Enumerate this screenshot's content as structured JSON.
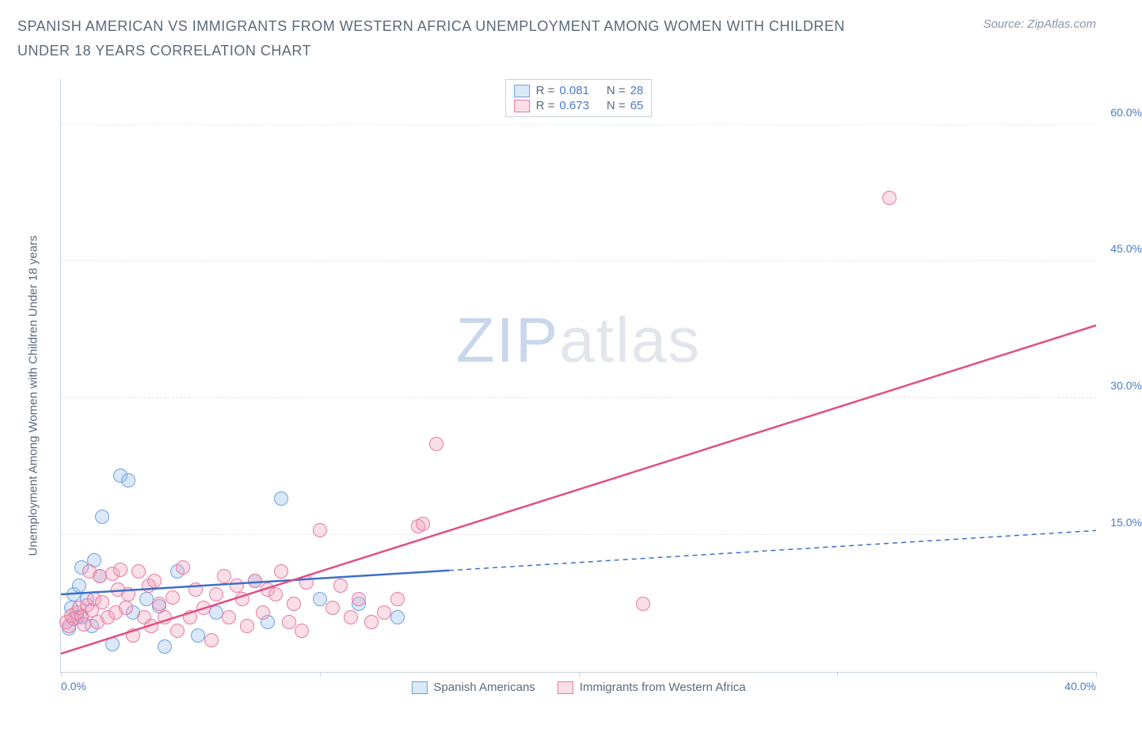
{
  "title": "SPANISH AMERICAN VS IMMIGRANTS FROM WESTERN AFRICA UNEMPLOYMENT AMONG WOMEN WITH CHILDREN UNDER 18 YEARS CORRELATION CHART",
  "source": "Source: ZipAtlas.com",
  "ylabel": "Unemployment Among Women with Children Under 18 years",
  "watermark_zip": "ZIP",
  "watermark_atlas": "atlas",
  "chart": {
    "type": "scatter",
    "xlim": [
      0,
      40
    ],
    "ylim": [
      0,
      65
    ],
    "xticks": [
      0,
      10,
      20,
      30,
      40
    ],
    "xtick_labels": [
      "0.0%",
      "",
      "",
      "",
      "40.0%"
    ],
    "yticks": [
      15,
      30,
      45,
      60
    ],
    "ytick_labels": [
      "15.0%",
      "30.0%",
      "45.0%",
      "60.0%"
    ],
    "grid_color": "#e3e8ef",
    "axis_color": "#c9d2dc",
    "background_color": "#ffffff",
    "tick_label_color": "#4a7ac7",
    "series": [
      {
        "name": "Spanish Americans",
        "color_stroke": "#6fa0e0",
        "color_fill": "rgba(150,190,235,0.35)",
        "trend_color": "#3e6fc9",
        "trend_solid_end_x": 15,
        "trend": {
          "x1": 0,
          "y1": 8.5,
          "x2": 40,
          "y2": 15.5
        },
        "R": "0.081",
        "N": "28",
        "points": [
          [
            0.3,
            4.8
          ],
          [
            0.4,
            7.0
          ],
          [
            0.5,
            8.5
          ],
          [
            0.6,
            6.0
          ],
          [
            0.7,
            9.5
          ],
          [
            0.8,
            11.5
          ],
          [
            0.8,
            6.2
          ],
          [
            1.0,
            8.0
          ],
          [
            1.2,
            5.0
          ],
          [
            1.3,
            12.2
          ],
          [
            1.5,
            10.5
          ],
          [
            1.6,
            17.0
          ],
          [
            2.0,
            3.0
          ],
          [
            2.3,
            21.5
          ],
          [
            2.6,
            21.0
          ],
          [
            2.8,
            6.5
          ],
          [
            3.3,
            8.0
          ],
          [
            3.8,
            7.2
          ],
          [
            4.0,
            2.8
          ],
          [
            4.5,
            11.0
          ],
          [
            5.3,
            4.0
          ],
          [
            6.0,
            6.5
          ],
          [
            7.5,
            10.0
          ],
          [
            8.0,
            5.5
          ],
          [
            8.5,
            19.0
          ],
          [
            10.0,
            8.0
          ],
          [
            11.5,
            7.5
          ],
          [
            13.0,
            6.0
          ]
        ]
      },
      {
        "name": "Immigrants from Western Africa",
        "color_stroke": "#e87aa0",
        "color_fill": "rgba(240,160,190,0.35)",
        "trend_color": "#e04f86",
        "trend_solid_end_x": 40,
        "trend": {
          "x1": 0,
          "y1": 2.0,
          "x2": 40,
          "y2": 38.0
        },
        "R": "0.673",
        "N": "65",
        "points": [
          [
            0.2,
            5.5
          ],
          [
            0.3,
            5.0
          ],
          [
            0.4,
            6.2
          ],
          [
            0.5,
            5.8
          ],
          [
            0.6,
            6.5
          ],
          [
            0.7,
            7.0
          ],
          [
            0.8,
            6.0
          ],
          [
            0.9,
            5.2
          ],
          [
            1.0,
            7.3
          ],
          [
            1.1,
            11.0
          ],
          [
            1.2,
            6.8
          ],
          [
            1.3,
            8.0
          ],
          [
            1.4,
            5.5
          ],
          [
            1.5,
            10.5
          ],
          [
            1.6,
            7.6
          ],
          [
            1.8,
            6.0
          ],
          [
            2.0,
            10.8
          ],
          [
            2.1,
            6.5
          ],
          [
            2.2,
            9.0
          ],
          [
            2.3,
            11.2
          ],
          [
            2.5,
            7.0
          ],
          [
            2.6,
            8.5
          ],
          [
            2.8,
            4.0
          ],
          [
            3.0,
            11.0
          ],
          [
            3.2,
            6.0
          ],
          [
            3.4,
            9.5
          ],
          [
            3.5,
            5.0
          ],
          [
            3.6,
            10.0
          ],
          [
            3.8,
            7.5
          ],
          [
            4.0,
            6.0
          ],
          [
            4.3,
            8.2
          ],
          [
            4.5,
            4.5
          ],
          [
            4.7,
            11.5
          ],
          [
            5.0,
            6.0
          ],
          [
            5.2,
            9.0
          ],
          [
            5.5,
            7.0
          ],
          [
            5.8,
            3.5
          ],
          [
            6.0,
            8.5
          ],
          [
            6.3,
            10.5
          ],
          [
            6.5,
            6.0
          ],
          [
            6.8,
            9.5
          ],
          [
            7.0,
            8.0
          ],
          [
            7.2,
            5.0
          ],
          [
            7.5,
            10.0
          ],
          [
            7.8,
            6.5
          ],
          [
            8.0,
            9.0
          ],
          [
            8.3,
            8.5
          ],
          [
            8.5,
            11.0
          ],
          [
            8.8,
            5.5
          ],
          [
            9.0,
            7.5
          ],
          [
            9.3,
            4.5
          ],
          [
            9.5,
            9.8
          ],
          [
            10.0,
            15.5
          ],
          [
            10.5,
            7.0
          ],
          [
            10.8,
            9.5
          ],
          [
            11.2,
            6.0
          ],
          [
            11.5,
            8.0
          ],
          [
            12.0,
            5.5
          ],
          [
            12.5,
            6.5
          ],
          [
            13.0,
            8.0
          ],
          [
            14.5,
            25.0
          ],
          [
            13.8,
            16.0
          ],
          [
            14.0,
            16.2
          ],
          [
            22.5,
            7.5
          ],
          [
            32.0,
            52.0
          ]
        ]
      }
    ]
  },
  "legend_top": {
    "r_label": "R =",
    "n_label": "N ="
  },
  "legend_bottom": [
    {
      "label": "Spanish Americans",
      "stroke": "#6fa0e0",
      "fill": "rgba(150,190,235,0.45)"
    },
    {
      "label": "Immigrants from Western Africa",
      "stroke": "#e87aa0",
      "fill": "rgba(240,160,190,0.45)"
    }
  ]
}
